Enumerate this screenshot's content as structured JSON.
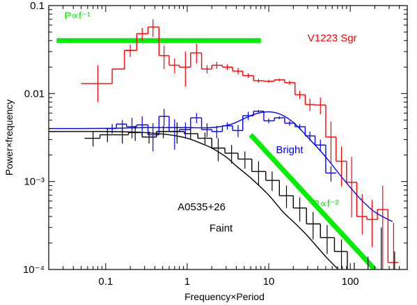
{
  "chart_data": {
    "type": "line",
    "xlabel": "Frequency×Period",
    "ylabel": "Power×frequency",
    "xscale": "log",
    "yscale": "log",
    "xlim": [
      0.02,
      500
    ],
    "ylim": [
      0.0001,
      0.1
    ],
    "x_ticks": [
      {
        "value": 0.1,
        "label": "0.1"
      },
      {
        "value": 1,
        "label": "1"
      },
      {
        "value": 10,
        "label": "10"
      },
      {
        "value": 100,
        "label": "100"
      }
    ],
    "y_ticks": [
      {
        "value": 0.1,
        "label": "0.1"
      },
      {
        "value": 0.01,
        "label": "0.01"
      },
      {
        "value": 0.001,
        "label": "10⁻³"
      },
      {
        "value": 0.0001,
        "label": "10⁻⁴"
      }
    ],
    "series": [
      {
        "name": "V1223 Sgr",
        "color": "#ff0000",
        "style": "step-with-errorbars",
        "edges": [
          0.05,
          0.12,
          0.17,
          0.24,
          0.33,
          0.45,
          0.6,
          0.8,
          1.1,
          1.5,
          2.0,
          2.7,
          3.6,
          4.8,
          6.5,
          8.7,
          11.7,
          15.7,
          21,
          28,
          37,
          50,
          67,
          90,
          120,
          160,
          215,
          290,
          390
        ],
        "centers": [
          0.08,
          0.14,
          0.2,
          0.28,
          0.38,
          0.52,
          0.7,
          0.95,
          1.3,
          1.75,
          2.3,
          3.1,
          4.2,
          5.6,
          7.5,
          10,
          13.5,
          18,
          24,
          32,
          43,
          58,
          78,
          104,
          140,
          185,
          250,
          340
        ],
        "values": [
          0.013,
          0.019,
          0.031,
          0.048,
          0.057,
          0.027,
          0.021,
          0.02,
          0.029,
          0.019,
          0.021,
          0.02,
          0.018,
          0.016,
          0.014,
          0.0138,
          0.0143,
          0.0133,
          0.0097,
          0.0075,
          0.0074,
          0.0032,
          0.0017,
          0.00098,
          0.0004,
          0.00037,
          0.00048,
          0.00012
        ],
        "err_lo": [
          0.008,
          0.019,
          0.026,
          0.04,
          0.044,
          0.019,
          0.017,
          0.012,
          0.022,
          0.017,
          0.019,
          0.0185,
          0.0165,
          0.015,
          0.0133,
          0.0133,
          0.0138,
          0.0125,
          0.0087,
          0.0063,
          0.0058,
          0.0016,
          0.00088,
          0.00039,
          0.00025,
          0.00018,
          0.0001,
          0.0001
        ],
        "err_hi": [
          0.021,
          0.019,
          0.036,
          0.056,
          0.07,
          0.035,
          0.025,
          0.03,
          0.037,
          0.021,
          0.023,
          0.0215,
          0.0195,
          0.017,
          0.0147,
          0.0143,
          0.0148,
          0.014,
          0.0107,
          0.0087,
          0.009,
          0.0048,
          0.0025,
          0.0019,
          0.00072,
          0.00062,
          0.0009,
          0.00034
        ]
      },
      {
        "name": "Bright",
        "color": "#0000ff",
        "style": "step-with-errorbars",
        "edges": [
          0.1,
          0.135,
          0.18,
          0.24,
          0.33,
          0.45,
          0.6,
          0.8,
          1.1,
          1.5,
          2.0,
          2.7,
          3.6,
          4.8,
          6.5,
          8.7,
          11.7,
          15.7,
          21,
          28,
          37,
          50,
          67
        ],
        "centers": [
          0.12,
          0.16,
          0.21,
          0.28,
          0.38,
          0.52,
          0.7,
          0.95,
          1.3,
          1.75,
          2.3,
          3.1,
          4.2,
          5.6,
          7.5,
          10,
          13.5,
          18,
          24,
          32,
          43,
          58
        ],
        "values": [
          0.004,
          0.0045,
          0.0042,
          0.0044,
          0.0034,
          0.0055,
          0.0037,
          0.0039,
          0.0053,
          0.0039,
          0.0037,
          0.0043,
          0.0038,
          0.0056,
          0.0063,
          0.0049,
          0.0053,
          0.0046,
          0.0042,
          0.0033,
          0.0026,
          0.00125
        ],
        "err_lo": [
          0.0035,
          0.004,
          0.0031,
          0.0033,
          0.0022,
          0.0043,
          0.0023,
          0.0031,
          0.0046,
          0.0032,
          0.0031,
          0.0039,
          0.0032,
          0.005,
          0.0061,
          0.0046,
          0.0051,
          0.0043,
          0.0039,
          0.0029,
          0.0022,
          0.001
        ],
        "err_hi": [
          0.0045,
          0.005,
          0.0053,
          0.0055,
          0.0046,
          0.0067,
          0.0051,
          0.0047,
          0.006,
          0.0046,
          0.0043,
          0.0047,
          0.0044,
          0.0062,
          0.0065,
          0.0052,
          0.0055,
          0.0049,
          0.0045,
          0.0037,
          0.003,
          0.0015
        ]
      },
      {
        "name": "Bright model",
        "color": "#0000ff",
        "style": "smooth",
        "x": [
          0.02,
          0.1,
          0.3,
          0.6,
          1,
          2,
          3.5,
          5,
          7,
          10,
          14,
          20,
          30,
          50,
          80,
          130,
          200,
          330
        ],
        "values": [
          0.004,
          0.00402,
          0.0041,
          0.0041,
          0.0041,
          0.0041,
          0.0045,
          0.0052,
          0.0059,
          0.0062,
          0.0058,
          0.0047,
          0.0032,
          0.0019,
          0.0011,
          0.00065,
          0.00045,
          0.00035
        ]
      },
      {
        "name": "A0535+26 Faint",
        "color": "#000000",
        "style": "step-with-errorbars",
        "edges": [
          0.055,
          0.085,
          0.13,
          0.19,
          0.28,
          0.42,
          0.62,
          0.92,
          1.35,
          2.0,
          2.9,
          4.2,
          6.2,
          9.2,
          13.5,
          20,
          29,
          43,
          64,
          92,
          135,
          200,
          290,
          420
        ],
        "centers": [
          0.07,
          0.105,
          0.16,
          0.23,
          0.34,
          0.51,
          0.75,
          1.1,
          1.65,
          2.4,
          3.5,
          5.1,
          7.5,
          11,
          16.5,
          24,
          35,
          52,
          78,
          112,
          165,
          240,
          350
        ],
        "values": [
          0.0031,
          0.0034,
          0.0034,
          0.0036,
          0.0032,
          0.0037,
          0.0037,
          0.0035,
          0.0031,
          0.0024,
          0.0021,
          0.0018,
          0.0013,
          0.00103,
          0.00069,
          0.0005,
          0.00033,
          0.00023,
          0.00016,
          8e-05,
          8e-05,
          7e-05,
          9e-05
        ],
        "err_lo": [
          0.0025,
          0.0028,
          0.0027,
          0.0029,
          0.0027,
          0.0031,
          0.0027,
          0.003,
          0.0026,
          0.0017,
          0.0016,
          0.0014,
          0.0009,
          0.00078,
          0.0005,
          0.00035,
          0.00022,
          0.00015,
          0.0001,
          5e-05,
          5e-05,
          4e-05,
          5e-05
        ],
        "err_hi": [
          0.0037,
          0.004,
          0.0041,
          0.0043,
          0.0037,
          0.0043,
          0.0047,
          0.004,
          0.0036,
          0.0031,
          0.0026,
          0.0022,
          0.0017,
          0.0013,
          0.0009,
          0.00066,
          0.00045,
          0.00032,
          0.00022,
          0.00012,
          0.00014,
          0.0003,
          0.00016
        ]
      },
      {
        "name": "Faint model",
        "color": "#000000",
        "style": "smooth",
        "x": [
          0.02,
          0.1,
          0.3,
          0.6,
          1,
          1.5,
          2,
          3,
          4,
          6,
          10,
          15,
          20,
          30,
          50,
          80
        ],
        "values": [
          0.0037,
          0.0037,
          0.0036,
          0.0034,
          0.0031,
          0.0027,
          0.0024,
          0.0019,
          0.0015,
          0.0011,
          0.0007,
          0.00045,
          0.00035,
          0.00024,
          0.00014,
          9e-05
        ]
      }
    ],
    "reference_lines": [
      {
        "label": "P∝f⁻¹",
        "color": "#00ee00",
        "x": [
          0.025,
          8
        ],
        "y": [
          0.04,
          0.04
        ]
      },
      {
        "label": "P∝f⁻²",
        "color": "#00ee00",
        "x": [
          6,
          200
        ],
        "y": [
          0.0034,
          0.0001
        ]
      }
    ],
    "annotations": [
      {
        "text": "P∝f⁻¹",
        "color": "#00ee00",
        "at": [
          0.045,
          0.07
        ]
      },
      {
        "text": "V1223 Sgr",
        "color": "#ff0000",
        "at": [
          60,
          0.039
        ]
      },
      {
        "text": "Bright",
        "color": "#0000ff",
        "at": [
          18,
          0.0021
        ]
      },
      {
        "text": "P∝f⁻²",
        "color": "#00ee00",
        "at": [
          50,
          0.00051
        ]
      },
      {
        "text": "A0535+26",
        "color": "#000000",
        "at": [
          1.5,
          0.00047
        ]
      },
      {
        "text": "Faint",
        "color": "#000000",
        "at": [
          2.6,
          0.00027
        ]
      }
    ],
    "grid": false,
    "legend": "none"
  }
}
